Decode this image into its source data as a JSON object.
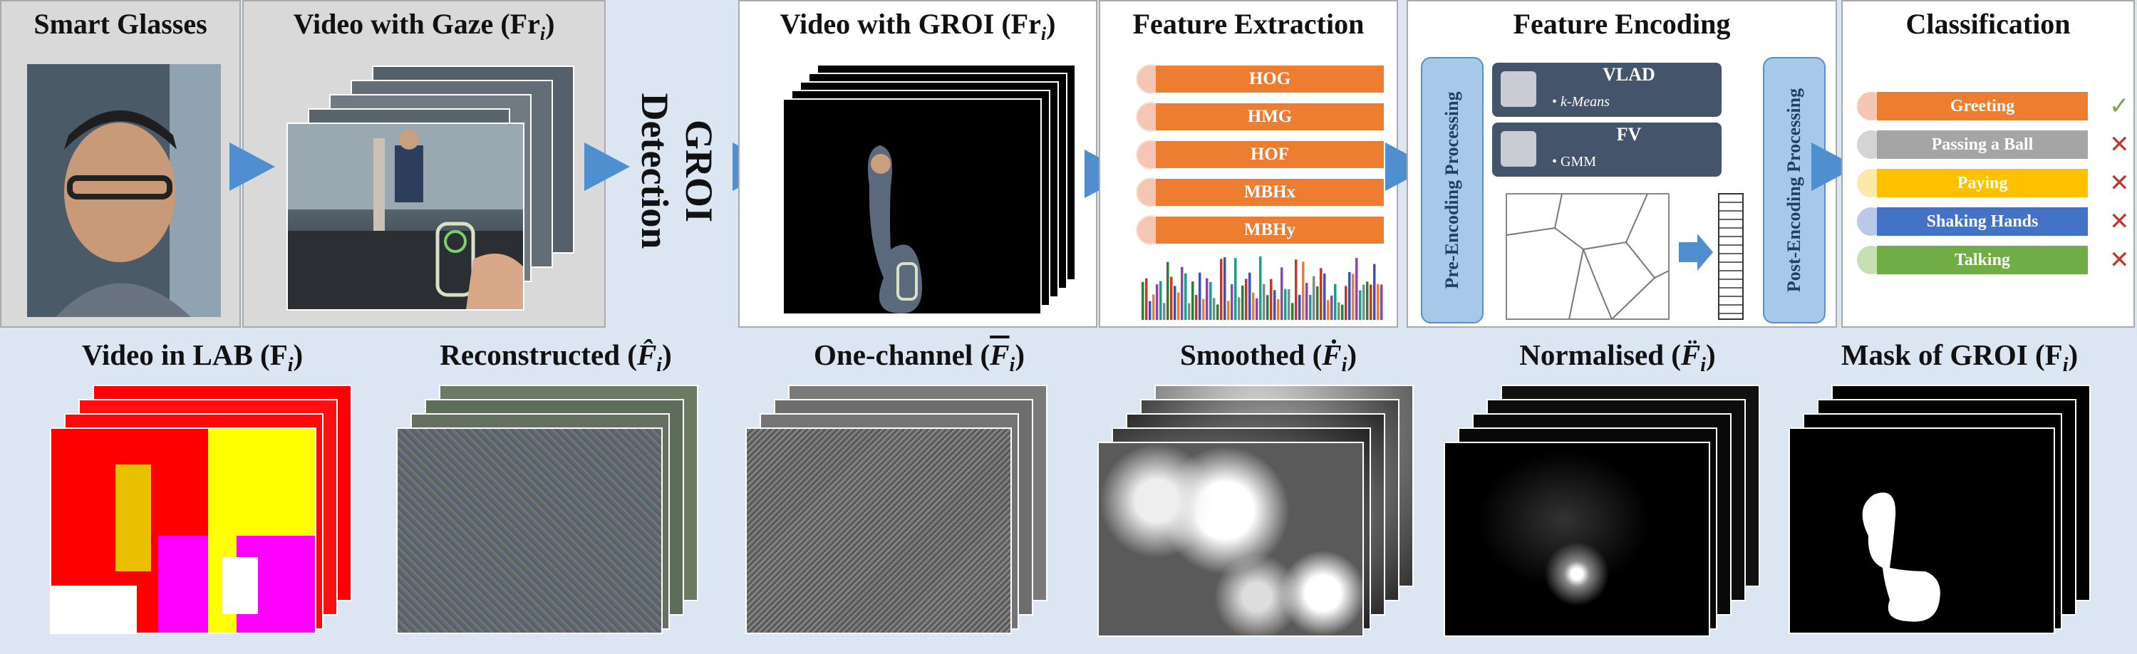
{
  "top_panels": {
    "smart_glasses": "Smart Glasses",
    "video_gaze": "Video with Gaze (Fr",
    "video_gaze_sub": "i",
    "video_gaze_close": ")",
    "groi_detection_line1": "GROI",
    "groi_detection_line2": "Detection",
    "video_groi": "Video with GROI (Fr",
    "video_groi_sub": "i",
    "video_groi_close": ")",
    "feature_extraction": "Feature Extraction",
    "feature_encoding": "Feature Encoding",
    "classification": "Classification"
  },
  "features": [
    "HOG",
    "HMG",
    "HOF",
    "MBHx",
    "MBHy"
  ],
  "encoding": {
    "pre": "Pre-Encoding Processing",
    "post": "Post-Encoding Processing",
    "vlad": "VLAD",
    "vlad_sub": "k-Means",
    "fv": "FV",
    "fv_sub": "GMM"
  },
  "classes": [
    {
      "label": "Greeting",
      "color": "#ed7d31",
      "dot": "#f4c6b3",
      "mark": "✓",
      "mark_color": "#7aa24a"
    },
    {
      "label": "Passing a Ball",
      "color": "#a5a5a5",
      "dot": "#d4d4d4",
      "mark": "✕",
      "mark_color": "#c0392b"
    },
    {
      "label": "Paying",
      "color": "#ffc000",
      "dot": "#fde9a7",
      "mark": "✕",
      "mark_color": "#c0392b"
    },
    {
      "label": "Shaking Hands",
      "color": "#4472c4",
      "dot": "#b9c9e8",
      "mark": "✕",
      "mark_color": "#c0392b"
    },
    {
      "label": "Talking",
      "color": "#70ad47",
      "dot": "#c6e0b4",
      "mark": "✕",
      "mark_color": "#c0392b"
    }
  ],
  "bottom_stages": {
    "lab": "Video in LAB (F",
    "reconstructed": "Reconstructed (",
    "one_channel": "One-channel (",
    "smoothed": "Smoothed (",
    "normalised": "Normalised (",
    "mask": "Mask of GROI (F"
  },
  "colors": {
    "arrow": "#4f8fd0",
    "background": "#dbe6f2",
    "encoding_box": "#44546a",
    "feature_bar": "#ed7d31"
  }
}
